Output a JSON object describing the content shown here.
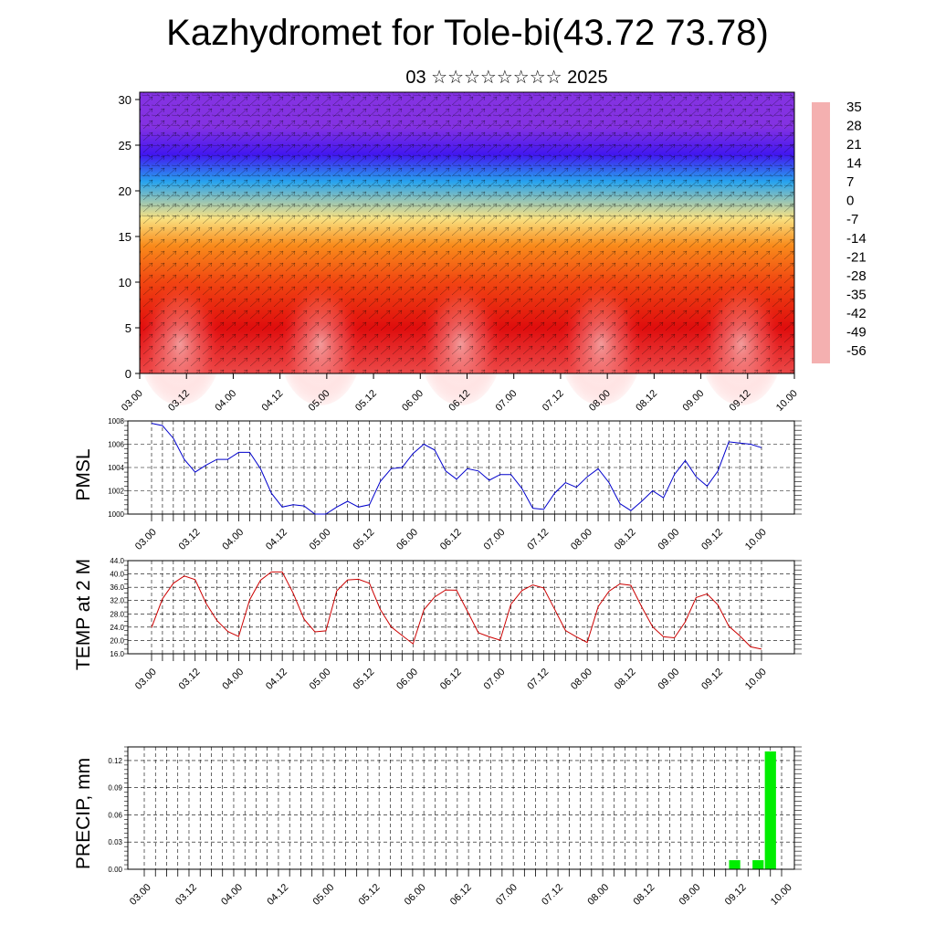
{
  "title": "Kazhydromet for Tole-bi(43.72 73.78)",
  "subtitle": "03 ☆☆☆☆☆☆☆☆ 2025",
  "colors": {
    "pmsl_line": "#0000cc",
    "temp_line": "#cc0000",
    "precip_bar": "#00ee00"
  },
  "chart_data": [
    {
      "type": "heatmap",
      "title": "",
      "xlabel": "",
      "ylabel": "",
      "x_tick_labels": [
        "03.00",
        "03.12",
        "04.00",
        "04.12",
        "05.00",
        "05.12",
        "06.00",
        "06.12",
        "07.00",
        "07.12",
        "08.00",
        "08.12",
        "09.00",
        "09.12",
        "10.00"
      ],
      "y_tick_labels": [
        "0",
        "5",
        "10",
        "15",
        "20",
        "25",
        "30"
      ],
      "ylim": [
        0,
        30.8
      ],
      "colorbar_labels": [
        "35",
        "28",
        "21",
        "14",
        "7",
        "0",
        "-7",
        "-14",
        "-21",
        "-28",
        "-35",
        "-42",
        "-49",
        "-56"
      ],
      "overlay": "wind vectors",
      "temperature_profile": [
        {
          "level": 0,
          "value": 30
        },
        {
          "level": 5,
          "value": 22
        },
        {
          "level": 10,
          "value": 12
        },
        {
          "level": 14,
          "value": 2
        },
        {
          "level": 17,
          "value": -10
        },
        {
          "level": 21,
          "value": -30
        },
        {
          "level": 24,
          "value": -52
        },
        {
          "level": 27,
          "value": -60
        },
        {
          "level": 30.8,
          "value": -60
        }
      ]
    },
    {
      "type": "line",
      "ylabel": "PMSL",
      "x_tick_labels": [
        "03.00",
        "03.12",
        "04.00",
        "04.12",
        "05.00",
        "05.12",
        "06.00",
        "06.12",
        "07.00",
        "07.12",
        "08.00",
        "08.12",
        "09.00",
        "09.12",
        "10.00"
      ],
      "y_tick_labels": [
        "1000",
        "1002",
        "1004",
        "1006",
        "1008"
      ],
      "ylim": [
        1000,
        1008
      ],
      "grid": true,
      "series": [
        {
          "values": [
            1007.8,
            1007.6,
            1006.5,
            1004.7,
            1003.6,
            1004.2,
            1004.7,
            1004.7,
            1005.3,
            1005.3,
            1003.9,
            1001.8,
            1000.6,
            1000.8,
            1000.7,
            1000.0,
            1000.0,
            1000.6,
            1001.1,
            1000.6,
            1000.8,
            1002.8,
            1003.9,
            1004.0,
            1005.2,
            1006.0,
            1005.5,
            1003.7,
            1003.0,
            1003.9,
            1003.7,
            1002.9,
            1003.4,
            1003.4,
            1002.2,
            1000.5,
            1000.4,
            1001.8,
            1002.7,
            1002.3,
            1003.2,
            1003.9,
            1002.7,
            1000.9,
            1000.3,
            1001.1,
            1002.0,
            1001.4,
            1003.4,
            1004.6,
            1003.2,
            1002.4,
            1003.7,
            1006.2,
            1006.1,
            1006.0,
            1005.7
          ]
        }
      ]
    },
    {
      "type": "line",
      "ylabel": "TEMP at 2 M",
      "x_tick_labels": [
        "03.00",
        "03.12",
        "04.00",
        "04.12",
        "05.00",
        "05.12",
        "06.00",
        "06.12",
        "07.00",
        "07.12",
        "08.00",
        "08.12",
        "09.00",
        "09.12",
        "10.00"
      ],
      "y_tick_labels": [
        "16.0",
        "20.0",
        "24.0",
        "28.0",
        "32.0",
        "36.0",
        "40.0",
        "44.0"
      ],
      "ylim": [
        16,
        44
      ],
      "grid": true,
      "series": [
        {
          "values": [
            23.9,
            32.5,
            37.2,
            39.4,
            38.3,
            31.2,
            26.0,
            22.7,
            21.2,
            32.2,
            38.1,
            40.6,
            40.6,
            34.2,
            26.4,
            22.6,
            22.9,
            34.9,
            38.2,
            38.4,
            37.2,
            29.3,
            24.1,
            21.5,
            19.0,
            29.2,
            33.1,
            35.2,
            35.1,
            28.8,
            22.3,
            21.1,
            20.1,
            30.9,
            35.0,
            36.7,
            35.8,
            29.4,
            23.0,
            21.1,
            19.4,
            30.2,
            34.8,
            37.0,
            36.6,
            30.1,
            24.1,
            21.1,
            20.8,
            25.6,
            32.9,
            34.0,
            30.7,
            24.3,
            21.4,
            18.1,
            17.4
          ]
        }
      ]
    },
    {
      "type": "bar",
      "ylabel": "PRECIP, mm",
      "x_tick_labels": [
        "03.00",
        "03.12",
        "04.00",
        "04.12",
        "05.00",
        "05.12",
        "06.00",
        "06.12",
        "07.00",
        "07.12",
        "08.00",
        "08.12",
        "09.00",
        "09.12",
        "10.00"
      ],
      "y_tick_labels": [
        "0.00",
        "0.03",
        "0.06",
        "0.09",
        "0.12"
      ],
      "ylim": [
        0,
        0.135
      ],
      "grid": true,
      "bars": [
        {
          "x_step": 52.8,
          "value": 0.01
        },
        {
          "x_step": 54.9,
          "value": 0.01
        },
        {
          "x_step": 56.0,
          "value": 0.13
        }
      ]
    }
  ]
}
